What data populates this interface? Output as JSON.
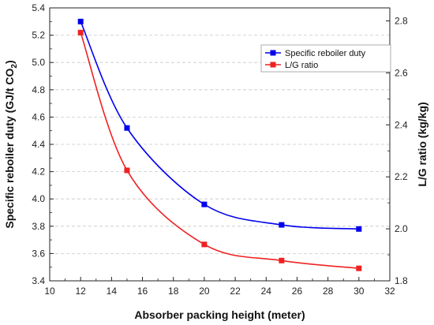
{
  "chart_data": {
    "type": "line",
    "x": [
      12,
      15,
      20,
      25,
      30
    ],
    "xlabel": "Absorber packing height (meter)",
    "xlim": [
      10,
      32
    ],
    "xticks": [
      10,
      12,
      14,
      16,
      18,
      20,
      22,
      24,
      26,
      28,
      30,
      32
    ],
    "ylabel_left": "Specific reboiler duty (GJ/t CO",
    "ylabel_left_subscript": "2",
    "ylabel_left_close": ")",
    "ylim_left": [
      3.4,
      5.4
    ],
    "yticks_left": [
      3.4,
      3.6,
      3.8,
      4.0,
      4.2,
      4.4,
      4.6,
      4.8,
      5.0,
      5.2,
      5.4
    ],
    "ylabel_right": "L/G ratio (kg/kg)",
    "ylim_right": [
      1.8,
      2.85
    ],
    "yticks_right": [
      1.8,
      2.0,
      2.2,
      2.4,
      2.6,
      2.8
    ],
    "grid": "horizontal-dashed",
    "legend_position": "top-right",
    "series": [
      {
        "name": "Specific reboiler duty",
        "axis": "left",
        "color": "#0000ee",
        "marker": "square",
        "values": [
          5.3,
          4.52,
          3.96,
          3.81,
          3.78
        ]
      },
      {
        "name": "L/G ratio",
        "axis": "right",
        "color": "#ee2222",
        "marker": "square",
        "values": [
          2.755,
          2.225,
          1.94,
          1.878,
          1.848
        ]
      }
    ]
  }
}
